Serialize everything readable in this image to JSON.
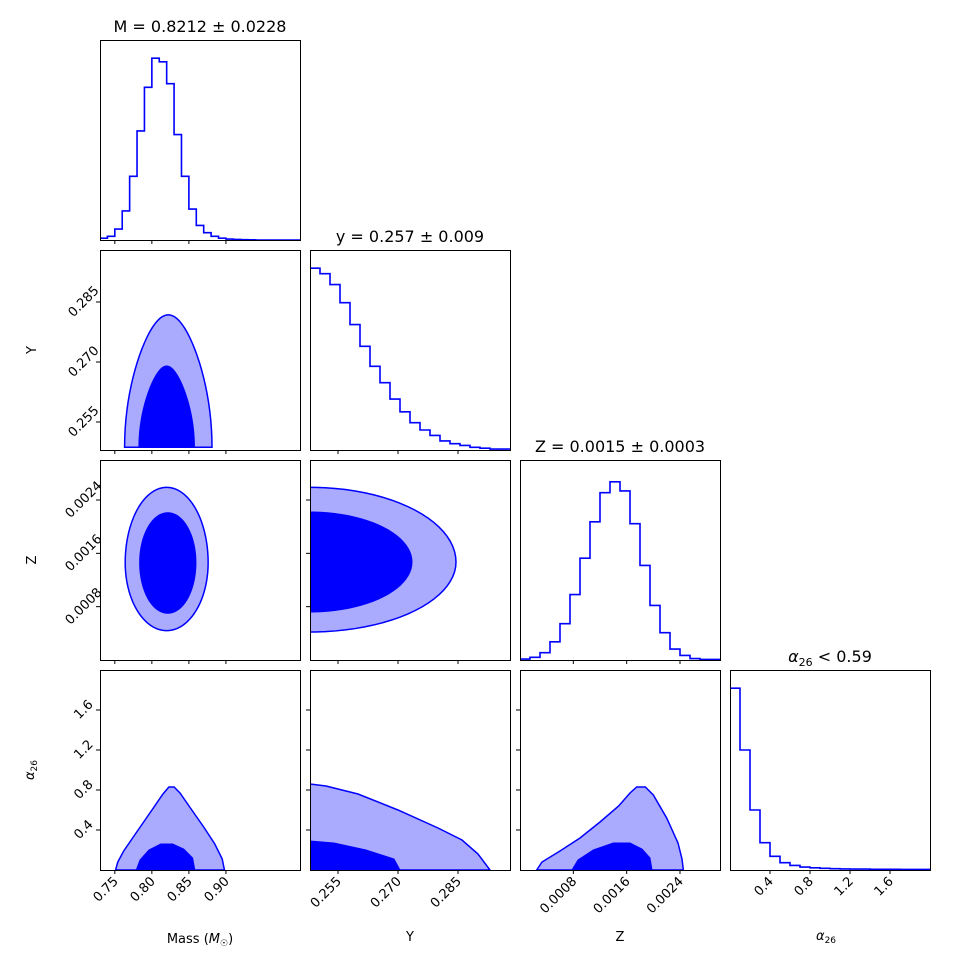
{
  "chart_data": {
    "type": "corner",
    "colors": {
      "line": "#0000ff",
      "fill_outer": "#aaaaff",
      "fill_inner": "#0000ff",
      "axis": "#000000"
    },
    "parameters": [
      {
        "id": "mass",
        "title_prefix": "M = ",
        "title_value": "0.8212 ± 0.0228",
        "xlabel_prefix": "Mass (",
        "xlabel_symbol": "M",
        "xlabel_sub": "☉",
        "xlabel_suffix": ")",
        "range": [
          0.73,
          1.0
        ],
        "ticks": [
          0.75,
          0.8,
          0.85,
          0.9
        ],
        "tick_labels": [
          "0.75",
          "0.80",
          "0.85",
          "0.90"
        ],
        "hist_bins": [
          0.73,
          0.74,
          0.75,
          0.76,
          0.77,
          0.78,
          0.79,
          0.8,
          0.81,
          0.82,
          0.83,
          0.84,
          0.85,
          0.86,
          0.87,
          0.88,
          0.89,
          0.9,
          0.91,
          0.92,
          0.93,
          0.94,
          1.0
        ],
        "hist_counts": [
          1,
          2,
          6,
          16,
          35,
          60,
          84,
          100,
          98,
          86,
          58,
          35,
          17,
          8,
          4,
          2,
          1,
          0.5,
          0.3,
          0.2,
          0.1,
          0
        ],
        "hist_ymax": 110
      },
      {
        "id": "y",
        "title_prefix": "y = ",
        "title_value": "0.257 ± 0.009",
        "xlabel": "Y",
        "range": [
          0.248,
          0.298
        ],
        "ticks": [
          0.255,
          0.27,
          0.285
        ],
        "tick_labels": [
          "0.255",
          "0.270",
          "0.285"
        ],
        "hist_bins": [
          0.248,
          0.2505,
          0.253,
          0.2555,
          0.258,
          0.2605,
          0.263,
          0.2655,
          0.268,
          0.2705,
          0.273,
          0.2755,
          0.278,
          0.2805,
          0.283,
          0.2855,
          0.288,
          0.2905,
          0.293,
          0.298
        ],
        "hist_counts": [
          100,
          97,
          91,
          81,
          69,
          57,
          46,
          37,
          28,
          21,
          15,
          11,
          8,
          5,
          3.5,
          2.5,
          1.5,
          1,
          0.5
        ],
        "hist_ymax": 110
      },
      {
        "id": "z",
        "title_prefix": "Z = ",
        "title_value": "0.0015 ± 0.0003",
        "xlabel": "Z",
        "range": [
          0.0,
          0.003
        ],
        "ticks": [
          0.0008,
          0.0016,
          0.0024
        ],
        "tick_labels": [
          "0.0008",
          "0.0016",
          "0.0024"
        ],
        "hist_bins": [
          0.0,
          0.00015,
          0.0003,
          0.00045,
          0.0006,
          0.00075,
          0.0009,
          0.00105,
          0.0012,
          0.00135,
          0.0015,
          0.00165,
          0.0018,
          0.00195,
          0.0021,
          0.00225,
          0.0024,
          0.00255,
          0.0027,
          0.003
        ],
        "hist_counts": [
          0.5,
          1.5,
          4,
          10,
          20,
          36,
          56,
          76,
          92,
          98,
          93,
          75,
          52,
          30,
          15,
          6,
          2.5,
          0.8,
          0.3
        ],
        "hist_ymax": 110
      },
      {
        "id": "alpha26",
        "title_symbol": "α",
        "title_sub": "26",
        "title_rest": " <  0.59",
        "xlabel_symbol": "α",
        "xlabel_sub": "26",
        "range": [
          0.0,
          2.0
        ],
        "ticks": [
          0.4,
          0.8,
          1.2,
          1.6
        ],
        "tick_labels": [
          "0.4",
          "0.8",
          "1.2",
          "1.6"
        ],
        "hist_bins": [
          0.0,
          0.1,
          0.2,
          0.3,
          0.4,
          0.5,
          0.6,
          0.7,
          0.8,
          0.9,
          1.0,
          1.1,
          1.2,
          1.3,
          1.4,
          1.5,
          1.6,
          1.7,
          1.8,
          1.9,
          2.0
        ],
        "hist_counts": [
          100,
          66,
          33,
          15,
          7.5,
          4,
          2.5,
          1.6,
          1.2,
          0.9,
          0.7,
          0.6,
          0.5,
          0.5,
          0.4,
          0.4,
          0.4,
          0.3,
          0.3,
          0.3
        ],
        "hist_ymax": 110
      }
    ],
    "contours": [
      {
        "row": 1,
        "col": 0,
        "outer": {
          "cx": 0.8222,
          "cy": 0.2487,
          "rx": 0.059,
          "ry_up": 0.0331,
          "ry_down": 0.0,
          "k": 0.18
        },
        "inner": {
          "cx": 0.82,
          "cy": 0.2487,
          "rx": 0.0375,
          "ry_up": 0.0203,
          "ry_down": 0.0,
          "k": 0.22
        }
      },
      {
        "row": 2,
        "col": 0,
        "outer": {
          "cx": 0.82,
          "cy": 0.00146,
          "rx": 0.056,
          "ry_up": 0.00113,
          "ry_down": 0.00102,
          "k": 0.0
        },
        "inner": {
          "cx": 0.8215,
          "cy": 0.00146,
          "rx": 0.038,
          "ry_up": 0.00075,
          "ry_down": 0.00076,
          "k": 0.0
        }
      },
      {
        "row": 2,
        "col": 1,
        "outer": {
          "cx": 0.248,
          "cy": 0.00147,
          "rx": 0.0365,
          "ry_up": 0.00112,
          "ry_down": 0.00105,
          "k": 0.0
        },
        "inner": {
          "cx": 0.248,
          "cy": 0.00147,
          "rx": 0.0255,
          "ry_up": 0.00075,
          "ry_down": 0.00075,
          "k": 0.0
        }
      },
      {
        "row": 3,
        "col": 0,
        "outer_poly": [
          [
            0.751,
            0.0
          ],
          [
            0.754,
            0.08
          ],
          [
            0.762,
            0.19
          ],
          [
            0.774,
            0.32
          ],
          [
            0.788,
            0.47
          ],
          [
            0.802,
            0.62
          ],
          [
            0.815,
            0.76
          ],
          [
            0.823,
            0.83
          ],
          [
            0.83,
            0.83
          ],
          [
            0.838,
            0.77
          ],
          [
            0.853,
            0.61
          ],
          [
            0.87,
            0.43
          ],
          [
            0.885,
            0.26
          ],
          [
            0.895,
            0.11
          ],
          [
            0.898,
            0.0
          ]
        ],
        "inner_poly": [
          [
            0.779,
            0.0
          ],
          [
            0.784,
            0.1
          ],
          [
            0.796,
            0.2
          ],
          [
            0.812,
            0.26
          ],
          [
            0.828,
            0.26
          ],
          [
            0.843,
            0.21
          ],
          [
            0.855,
            0.12
          ],
          [
            0.858,
            0.0
          ]
        ]
      },
      {
        "row": 3,
        "col": 1,
        "outer_poly": [
          [
            0.248,
            0.0
          ],
          [
            0.248,
            0.86
          ],
          [
            0.252,
            0.84
          ],
          [
            0.26,
            0.76
          ],
          [
            0.27,
            0.6
          ],
          [
            0.28,
            0.42
          ],
          [
            0.286,
            0.3
          ],
          [
            0.29,
            0.16
          ],
          [
            0.293,
            0.0
          ]
        ],
        "inner_poly": [
          [
            0.248,
            0.0
          ],
          [
            0.248,
            0.29
          ],
          [
            0.254,
            0.27
          ],
          [
            0.262,
            0.2
          ],
          [
            0.269,
            0.11
          ],
          [
            0.2705,
            0.0
          ]
        ]
      },
      {
        "row": 3,
        "col": 2,
        "outer_poly": [
          [
            0.00025,
            0.0
          ],
          [
            0.00033,
            0.08
          ],
          [
            0.0006,
            0.19
          ],
          [
            0.0009,
            0.32
          ],
          [
            0.0012,
            0.48
          ],
          [
            0.00148,
            0.64
          ],
          [
            0.00165,
            0.77
          ],
          [
            0.00175,
            0.83
          ],
          [
            0.00188,
            0.83
          ],
          [
            0.002,
            0.75
          ],
          [
            0.0022,
            0.52
          ],
          [
            0.00237,
            0.27
          ],
          [
            0.00243,
            0.11
          ],
          [
            0.00245,
            0.0
          ]
        ],
        "inner_poly": [
          [
            0.00078,
            0.0
          ],
          [
            0.00087,
            0.1
          ],
          [
            0.0011,
            0.2
          ],
          [
            0.0014,
            0.27
          ],
          [
            0.00165,
            0.27
          ],
          [
            0.00183,
            0.21
          ],
          [
            0.00195,
            0.12
          ],
          [
            0.00198,
            0.0
          ]
        ]
      }
    ]
  }
}
